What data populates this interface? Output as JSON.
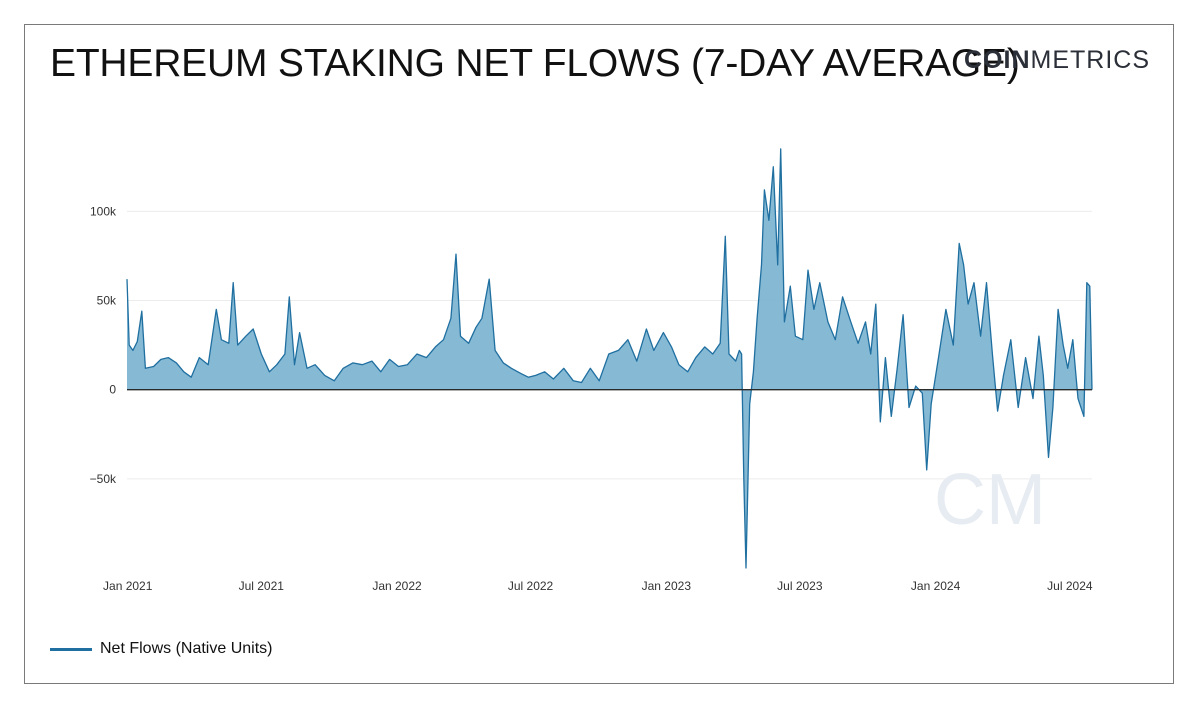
{
  "header": {
    "title": "ETHEREUM STAKING NET FLOWS (7-DAY AVERAGE)",
    "logo_bold": "COIN",
    "logo_light": "METRICS"
  },
  "watermark": "CM",
  "colors": {
    "line": "#1f6fa0",
    "fill": "#7fb5d2",
    "grid": "#ececec",
    "zero": "#2a2a2a"
  },
  "legend": {
    "label": "Net Flows (Native Units)"
  },
  "chart_data": {
    "type": "area",
    "title": "ETHEREUM STAKING NET FLOWS (7-DAY AVERAGE)",
    "xlabel": "",
    "ylabel": "",
    "ylim": [
      -100000,
      140000
    ],
    "xlim": [
      "2020-12-31",
      "2024-07-31"
    ],
    "grid": true,
    "legend_position": "bottom-left",
    "y_ticks": [
      {
        "value": 100000,
        "label": "100k"
      },
      {
        "value": 50000,
        "label": "50k"
      },
      {
        "value": 0,
        "label": "0"
      },
      {
        "value": -50000,
        "label": "−50k"
      }
    ],
    "x_ticks": [
      {
        "date": "2021-01-01",
        "label": "Jan 2021"
      },
      {
        "date": "2021-07-01",
        "label": "Jul 2021"
      },
      {
        "date": "2022-01-01",
        "label": "Jan 2022"
      },
      {
        "date": "2022-07-01",
        "label": "Jul 2022"
      },
      {
        "date": "2023-01-01",
        "label": "Jan 2023"
      },
      {
        "date": "2023-07-01",
        "label": "Jul 2023"
      },
      {
        "date": "2024-01-01",
        "label": "Jan 2024"
      },
      {
        "date": "2024-07-01",
        "label": "Jul 2024"
      }
    ],
    "series": [
      {
        "name": "Net Flows (Native Units)",
        "points": [
          [
            "2020-12-31",
            62000
          ],
          [
            "2021-01-03",
            25000
          ],
          [
            "2021-01-08",
            22000
          ],
          [
            "2021-01-14",
            27000
          ],
          [
            "2021-01-20",
            44000
          ],
          [
            "2021-01-25",
            12000
          ],
          [
            "2021-02-05",
            13000
          ],
          [
            "2021-02-15",
            17000
          ],
          [
            "2021-02-25",
            18000
          ],
          [
            "2021-03-08",
            15000
          ],
          [
            "2021-03-18",
            10000
          ],
          [
            "2021-03-28",
            7000
          ],
          [
            "2021-04-08",
            18000
          ],
          [
            "2021-04-20",
            14000
          ],
          [
            "2021-05-01",
            45000
          ],
          [
            "2021-05-08",
            28000
          ],
          [
            "2021-05-18",
            26000
          ],
          [
            "2021-05-24",
            60000
          ],
          [
            "2021-05-30",
            25000
          ],
          [
            "2021-06-10",
            30000
          ],
          [
            "2021-06-20",
            34000
          ],
          [
            "2021-07-01",
            20000
          ],
          [
            "2021-07-12",
            10000
          ],
          [
            "2021-07-22",
            14000
          ],
          [
            "2021-08-02",
            20000
          ],
          [
            "2021-08-08",
            52000
          ],
          [
            "2021-08-15",
            14000
          ],
          [
            "2021-08-22",
            32000
          ],
          [
            "2021-09-01",
            12000
          ],
          [
            "2021-09-12",
            14000
          ],
          [
            "2021-09-25",
            8000
          ],
          [
            "2021-10-08",
            5000
          ],
          [
            "2021-10-20",
            12000
          ],
          [
            "2021-11-02",
            15000
          ],
          [
            "2021-11-15",
            14000
          ],
          [
            "2021-11-28",
            16000
          ],
          [
            "2021-12-10",
            10000
          ],
          [
            "2021-12-22",
            17000
          ],
          [
            "2022-01-03",
            13000
          ],
          [
            "2022-01-15",
            14000
          ],
          [
            "2022-01-28",
            20000
          ],
          [
            "2022-02-10",
            18000
          ],
          [
            "2022-02-22",
            24000
          ],
          [
            "2022-03-05",
            28000
          ],
          [
            "2022-03-15",
            40000
          ],
          [
            "2022-03-22",
            76000
          ],
          [
            "2022-03-28",
            30000
          ],
          [
            "2022-04-08",
            26000
          ],
          [
            "2022-04-18",
            35000
          ],
          [
            "2022-04-26",
            40000
          ],
          [
            "2022-05-06",
            62000
          ],
          [
            "2022-05-14",
            22000
          ],
          [
            "2022-05-25",
            15000
          ],
          [
            "2022-06-05",
            12000
          ],
          [
            "2022-06-18",
            9000
          ],
          [
            "2022-06-28",
            7000
          ],
          [
            "2022-07-08",
            8000
          ],
          [
            "2022-07-20",
            10000
          ],
          [
            "2022-08-01",
            6000
          ],
          [
            "2022-08-15",
            12000
          ],
          [
            "2022-08-28",
            5000
          ],
          [
            "2022-09-08",
            4000
          ],
          [
            "2022-09-20",
            12000
          ],
          [
            "2022-10-02",
            5000
          ],
          [
            "2022-10-15",
            20000
          ],
          [
            "2022-10-28",
            22000
          ],
          [
            "2022-11-10",
            28000
          ],
          [
            "2022-11-22",
            16000
          ],
          [
            "2022-12-05",
            34000
          ],
          [
            "2022-12-15",
            22000
          ],
          [
            "2022-12-28",
            32000
          ],
          [
            "2023-01-08",
            24000
          ],
          [
            "2023-01-18",
            14000
          ],
          [
            "2023-01-30",
            10000
          ],
          [
            "2023-02-10",
            18000
          ],
          [
            "2023-02-22",
            24000
          ],
          [
            "2023-03-05",
            20000
          ],
          [
            "2023-03-15",
            26000
          ],
          [
            "2023-03-22",
            86000
          ],
          [
            "2023-03-27",
            20000
          ],
          [
            "2023-04-05",
            16000
          ],
          [
            "2023-04-10",
            22000
          ],
          [
            "2023-04-13",
            20000
          ],
          [
            "2023-04-16",
            -50000
          ],
          [
            "2023-04-19",
            -100000
          ],
          [
            "2023-04-24",
            -8000
          ],
          [
            "2023-04-29",
            10000
          ],
          [
            "2023-05-04",
            40000
          ],
          [
            "2023-05-10",
            70000
          ],
          [
            "2023-05-14",
            112000
          ],
          [
            "2023-05-20",
            95000
          ],
          [
            "2023-05-26",
            125000
          ],
          [
            "2023-06-01",
            70000
          ],
          [
            "2023-06-05",
            135000
          ],
          [
            "2023-06-10",
            38000
          ],
          [
            "2023-06-18",
            58000
          ],
          [
            "2023-06-25",
            30000
          ],
          [
            "2023-07-05",
            28000
          ],
          [
            "2023-07-12",
            67000
          ],
          [
            "2023-07-20",
            45000
          ],
          [
            "2023-07-28",
            60000
          ],
          [
            "2023-08-08",
            38000
          ],
          [
            "2023-08-18",
            28000
          ],
          [
            "2023-08-28",
            52000
          ],
          [
            "2023-09-08",
            38000
          ],
          [
            "2023-09-18",
            26000
          ],
          [
            "2023-09-28",
            38000
          ],
          [
            "2023-10-05",
            20000
          ],
          [
            "2023-10-12",
            48000
          ],
          [
            "2023-10-18",
            -18000
          ],
          [
            "2023-10-25",
            18000
          ],
          [
            "2023-11-02",
            -15000
          ],
          [
            "2023-11-10",
            12000
          ],
          [
            "2023-11-18",
            42000
          ],
          [
            "2023-11-26",
            -10000
          ],
          [
            "2023-12-05",
            2000
          ],
          [
            "2023-12-14",
            -2000
          ],
          [
            "2023-12-20",
            -45000
          ],
          [
            "2023-12-26",
            -8000
          ],
          [
            "2024-01-05",
            18000
          ],
          [
            "2024-01-15",
            45000
          ],
          [
            "2024-01-25",
            25000
          ],
          [
            "2024-02-02",
            82000
          ],
          [
            "2024-02-08",
            70000
          ],
          [
            "2024-02-14",
            48000
          ],
          [
            "2024-02-22",
            60000
          ],
          [
            "2024-03-02",
            30000
          ],
          [
            "2024-03-10",
            60000
          ],
          [
            "2024-03-18",
            20000
          ],
          [
            "2024-03-25",
            -12000
          ],
          [
            "2024-04-02",
            8000
          ],
          [
            "2024-04-12",
            28000
          ],
          [
            "2024-04-22",
            -10000
          ],
          [
            "2024-05-02",
            18000
          ],
          [
            "2024-05-12",
            -5000
          ],
          [
            "2024-05-20",
            30000
          ],
          [
            "2024-05-26",
            8000
          ],
          [
            "2024-06-02",
            -38000
          ],
          [
            "2024-06-08",
            -10000
          ],
          [
            "2024-06-15",
            45000
          ],
          [
            "2024-06-22",
            25000
          ],
          [
            "2024-06-28",
            12000
          ],
          [
            "2024-07-05",
            28000
          ],
          [
            "2024-07-12",
            -5000
          ],
          [
            "2024-07-20",
            -15000
          ],
          [
            "2024-07-24",
            60000
          ],
          [
            "2024-07-28",
            58000
          ],
          [
            "2024-07-31",
            0
          ]
        ]
      }
    ]
  }
}
